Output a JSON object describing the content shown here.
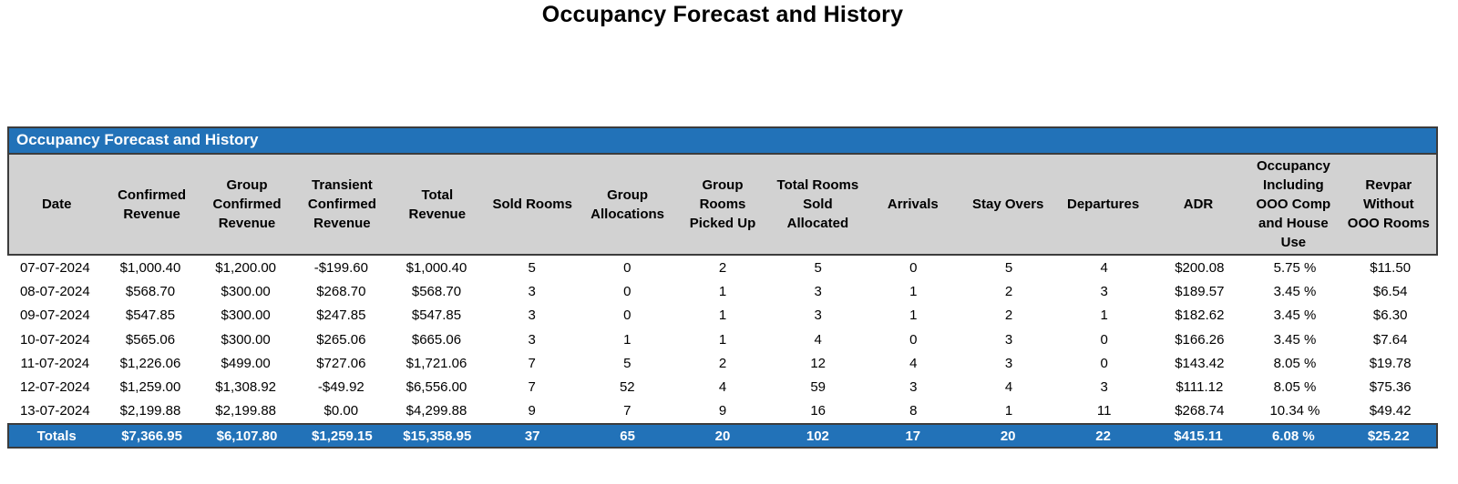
{
  "page": {
    "title": "Occupancy Forecast and History"
  },
  "table": {
    "title": "Occupancy Forecast and History",
    "columns": [
      "Date",
      "Confirmed Revenue",
      "Group Confirmed Revenue",
      "Transient Confirmed Revenue",
      "Total Revenue",
      "Sold Rooms",
      "Group Allocations",
      "Group Rooms Picked Up",
      "Total Rooms Sold Allocated",
      "Arrivals",
      "Stay Overs",
      "Departures",
      "ADR",
      "Occupancy Including OOO Comp and House Use",
      "Revpar Without OOO Rooms"
    ],
    "rows": [
      [
        "07-07-2024",
        "$1,000.40",
        "$1,200.00",
        "-$199.60",
        "$1,000.40",
        "5",
        "0",
        "2",
        "5",
        "0",
        "5",
        "4",
        "$200.08",
        "5.75 %",
        "$11.50"
      ],
      [
        "08-07-2024",
        "$568.70",
        "$300.00",
        "$268.70",
        "$568.70",
        "3",
        "0",
        "1",
        "3",
        "1",
        "2",
        "3",
        "$189.57",
        "3.45 %",
        "$6.54"
      ],
      [
        "09-07-2024",
        "$547.85",
        "$300.00",
        "$247.85",
        "$547.85",
        "3",
        "0",
        "1",
        "3",
        "1",
        "2",
        "1",
        "$182.62",
        "3.45 %",
        "$6.30"
      ],
      [
        "10-07-2024",
        "$565.06",
        "$300.00",
        "$265.06",
        "$665.06",
        "3",
        "1",
        "1",
        "4",
        "0",
        "3",
        "0",
        "$166.26",
        "3.45 %",
        "$7.64"
      ],
      [
        "11-07-2024",
        "$1,226.06",
        "$499.00",
        "$727.06",
        "$1,721.06",
        "7",
        "5",
        "2",
        "12",
        "4",
        "3",
        "0",
        "$143.42",
        "8.05 %",
        "$19.78"
      ],
      [
        "12-07-2024",
        "$1,259.00",
        "$1,308.92",
        "-$49.92",
        "$6,556.00",
        "7",
        "52",
        "4",
        "59",
        "3",
        "4",
        "3",
        "$111.12",
        "8.05 %",
        "$75.36"
      ],
      [
        "13-07-2024",
        "$2,199.88",
        "$2,199.88",
        "$0.00",
        "$4,299.88",
        "9",
        "7",
        "9",
        "16",
        "8",
        "1",
        "11",
        "$268.74",
        "10.34 %",
        "$49.42"
      ]
    ],
    "totals": [
      "Totals",
      "$7,366.95",
      "$6,107.80",
      "$1,259.15",
      "$15,358.95",
      "37",
      "65",
      "20",
      "102",
      "17",
      "20",
      "22",
      "$415.11",
      "6.08 %",
      "$25.22"
    ]
  },
  "colors": {
    "accent_blue": "#2272b8",
    "header_gray": "#d2d2d2",
    "border_dark": "#3c3c3c"
  }
}
